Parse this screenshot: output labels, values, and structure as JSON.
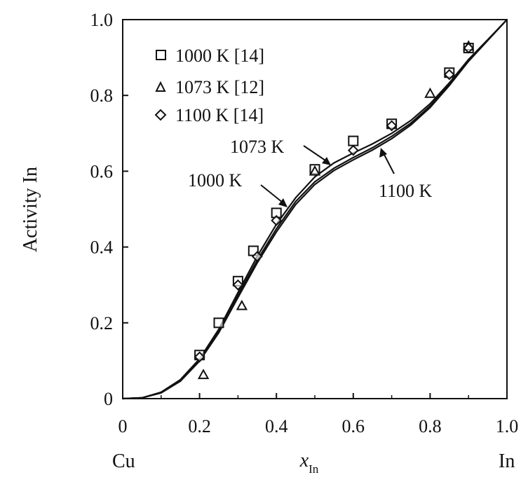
{
  "chart_data": {
    "type": "scatter",
    "title": "",
    "xlabel": "x",
    "xlabel_subscript": "In",
    "ylabel": "Activity In",
    "xlim": [
      0,
      1.0
    ],
    "ylim": [
      0,
      1.0
    ],
    "x_ticks": [
      "0",
      "0.2",
      "0.4",
      "0.6",
      "0.8",
      "1.0"
    ],
    "y_ticks": [
      "0",
      "0.2",
      "0.4",
      "0.6",
      "0.8",
      "1.0"
    ],
    "x_end_labels": {
      "left": "Cu",
      "right": "In"
    },
    "grid": false,
    "legend_position": "top-left",
    "series": [
      {
        "name": "1000 K [14]",
        "marker": "square",
        "x": [
          0.2,
          0.25,
          0.3,
          0.34,
          0.4,
          0.5,
          0.6,
          0.7,
          0.85,
          0.9
        ],
        "y": [
          0.115,
          0.2,
          0.31,
          0.39,
          0.49,
          0.605,
          0.68,
          0.725,
          0.86,
          0.925
        ]
      },
      {
        "name": "1073 K [12]",
        "marker": "triangle",
        "x": [
          0.21,
          0.31,
          0.5,
          0.8,
          0.9
        ],
        "y": [
          0.063,
          0.245,
          0.6,
          0.805,
          0.93
        ]
      },
      {
        "name": "1100 K [14]",
        "marker": "diamond",
        "x": [
          0.2,
          0.3,
          0.35,
          0.4,
          0.6,
          0.7,
          0.85,
          0.9
        ],
        "y": [
          0.11,
          0.3,
          0.375,
          0.47,
          0.655,
          0.72,
          0.855,
          0.925
        ]
      }
    ],
    "curves": [
      {
        "name": "1000 K",
        "x": [
          0,
          0.05,
          0.1,
          0.15,
          0.2,
          0.25,
          0.3,
          0.35,
          0.4,
          0.45,
          0.5,
          0.55,
          0.6,
          0.65,
          0.7,
          0.75,
          0.8,
          0.85,
          0.9,
          0.95,
          1.0
        ],
        "y": [
          0,
          0.002,
          0.017,
          0.05,
          0.105,
          0.183,
          0.28,
          0.375,
          0.46,
          0.53,
          0.585,
          0.622,
          0.648,
          0.672,
          0.7,
          0.734,
          0.778,
          0.833,
          0.895,
          0.947,
          1.0
        ]
      },
      {
        "name": "1073 K",
        "x": [
          0,
          0.05,
          0.1,
          0.15,
          0.2,
          0.25,
          0.3,
          0.35,
          0.4,
          0.45,
          0.5,
          0.55,
          0.6,
          0.65,
          0.7,
          0.75,
          0.8,
          0.85,
          0.9,
          0.95,
          1.0
        ],
        "y": [
          0,
          0.002,
          0.016,
          0.048,
          0.102,
          0.178,
          0.273,
          0.365,
          0.448,
          0.52,
          0.572,
          0.608,
          0.636,
          0.662,
          0.692,
          0.727,
          0.772,
          0.829,
          0.892,
          0.946,
          1.0
        ]
      },
      {
        "name": "1100 K",
        "x": [
          0,
          0.05,
          0.1,
          0.15,
          0.2,
          0.25,
          0.3,
          0.35,
          0.4,
          0.45,
          0.5,
          0.55,
          0.6,
          0.65,
          0.7,
          0.75,
          0.8,
          0.85,
          0.9,
          0.95,
          1.0
        ],
        "y": [
          0,
          0.002,
          0.015,
          0.046,
          0.099,
          0.174,
          0.267,
          0.358,
          0.44,
          0.512,
          0.565,
          0.602,
          0.63,
          0.656,
          0.686,
          0.722,
          0.768,
          0.826,
          0.89,
          0.945,
          1.0
        ]
      }
    ],
    "annotations": [
      {
        "text": "1073 K",
        "points_to": [
          0.54,
          0.608
        ]
      },
      {
        "text": "1000 K",
        "points_to": [
          0.43,
          0.495
        ]
      },
      {
        "text": "1100 K",
        "points_to": [
          0.655,
          0.665
        ]
      }
    ],
    "colors": {
      "ink": "#111111",
      "background": "#ffffff"
    }
  }
}
